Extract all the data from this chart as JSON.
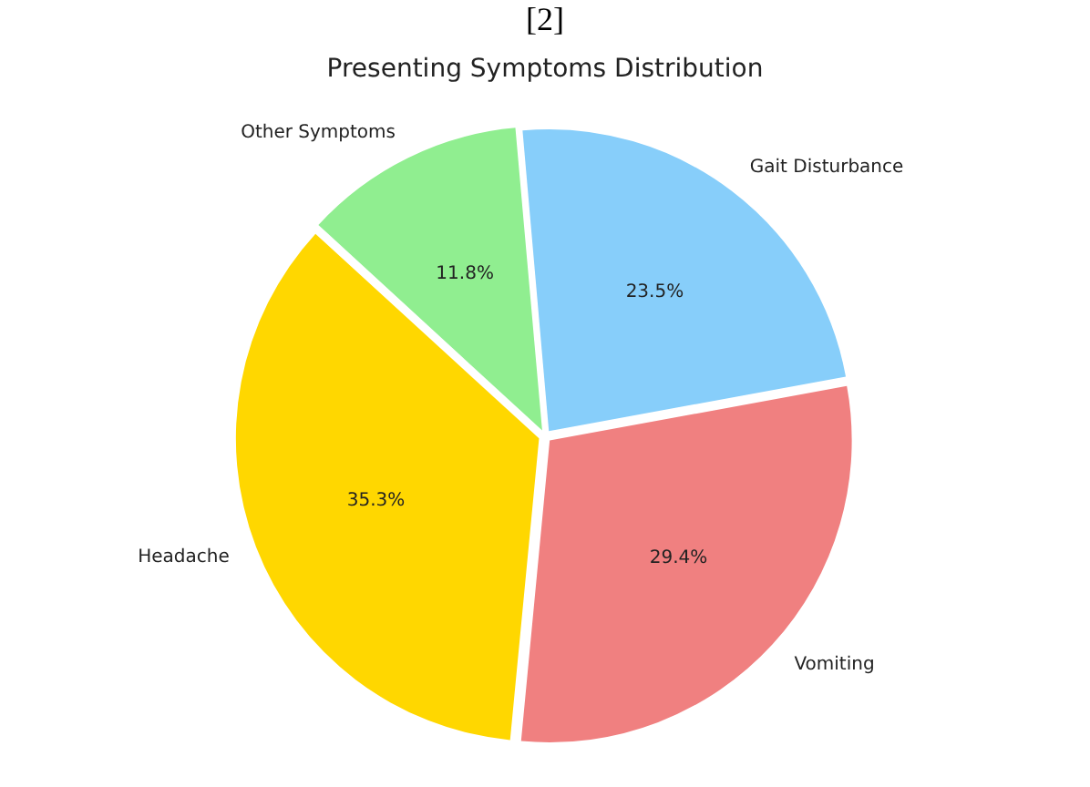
{
  "chart_data": {
    "type": "pie",
    "title": "Presenting Symptoms Distribution",
    "annotations": [
      "[2]"
    ],
    "categories": [
      "Gait Disturbance",
      "Vomiting",
      "Headache",
      "Other Symptoms"
    ],
    "values": [
      23.5,
      29.4,
      35.3,
      11.8
    ],
    "colors": [
      "#87cefa",
      "#f08080",
      "#ffd700",
      "#90ee90"
    ],
    "value_labels": [
      "23.5%",
      "29.4%",
      "35.3%",
      "11.8%"
    ],
    "legend": false
  }
}
